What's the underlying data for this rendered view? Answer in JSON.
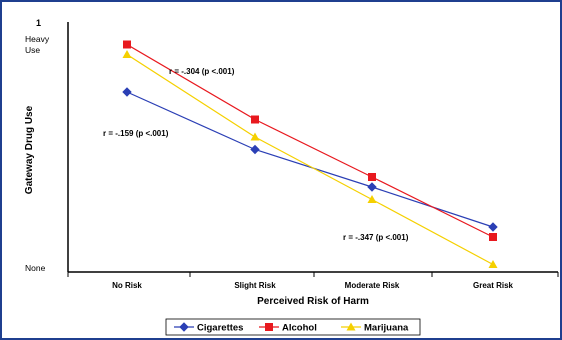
{
  "chart_data": {
    "type": "line",
    "xlabel": "Perceived Risk of Harm",
    "ylabel": "Gateway Drug Use",
    "y_top_value": "1",
    "y_top_label": "Heavy\nUse",
    "y_bottom_label": "None",
    "ylim": [
      0,
      1
    ],
    "categories": [
      "No Risk",
      "Slight Risk",
      "Moderate Risk",
      "Great Risk"
    ],
    "series": [
      {
        "name": "Cigarettes",
        "color": "#2b3fb5",
        "marker": "diamond",
        "values": [
          0.72,
          0.49,
          0.34,
          0.18
        ]
      },
      {
        "name": "Alcohol",
        "color": "#e8191f",
        "marker": "square",
        "values": [
          0.91,
          0.61,
          0.38,
          0.14
        ]
      },
      {
        "name": "Marijuana",
        "color": "#f5d000",
        "marker": "triangle",
        "values": [
          0.87,
          0.54,
          0.29,
          0.03
        ]
      }
    ],
    "annotations": [
      {
        "text": "r = -.304 (p <.001)",
        "series": "Alcohol"
      },
      {
        "text": "r = -.159 (p <.001)",
        "series": "Cigarettes"
      },
      {
        "text": "r = -.347 (p <.001)",
        "series": "Marijuana"
      }
    ],
    "grid": false,
    "legend": "bottom"
  }
}
